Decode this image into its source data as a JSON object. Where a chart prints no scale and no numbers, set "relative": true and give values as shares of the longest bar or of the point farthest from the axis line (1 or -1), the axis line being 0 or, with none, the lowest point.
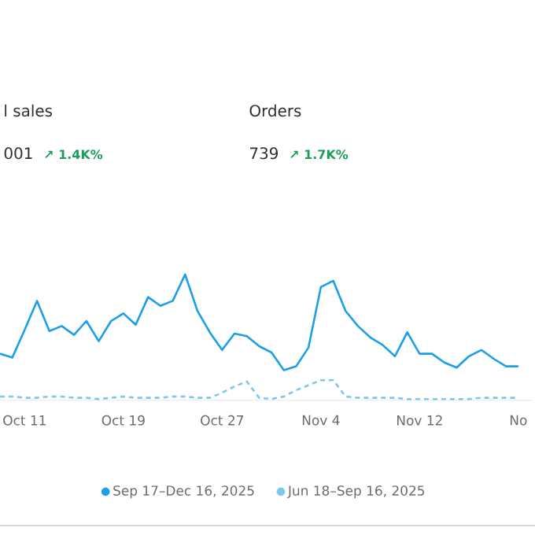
{
  "chart_data": {
    "type": "line",
    "relative": true,
    "legend": "bottom",
    "categories": [
      null,
      null,
      "Oct 11",
      null,
      null,
      null,
      null,
      null,
      null,
      null,
      "Oct 19",
      null,
      null,
      null,
      null,
      null,
      null,
      null,
      "Oct 27",
      null,
      null,
      null,
      null,
      null,
      null,
      null,
      "Nov 4",
      null,
      null,
      null,
      null,
      null,
      null,
      null,
      "Nov 12",
      null,
      null,
      null,
      null,
      null,
      null,
      null,
      "No"
    ],
    "series": [
      {
        "name": "Sep 17–Dec 16, 2025",
        "color": "#1a9fe8",
        "line_style": "solid",
        "values": [
          0.37,
          0.34,
          0.56,
          0.79,
          0.55,
          0.59,
          0.52,
          0.63,
          0.47,
          0.63,
          0.69,
          0.6,
          0.82,
          0.75,
          0.79,
          1.0,
          0.71,
          0.54,
          0.4,
          0.53,
          0.51,
          0.43,
          0.38,
          0.24,
          0.27,
          0.42,
          0.9,
          0.95,
          0.71,
          0.59,
          0.5,
          0.44,
          0.35,
          0.54,
          0.37,
          0.37,
          0.3,
          0.26,
          0.35,
          0.4,
          0.33,
          0.27,
          0.27
        ]
      },
      {
        "name": "Jun 18–Sep 16, 2025",
        "color": "#7cc7ec",
        "line_style": "dashed",
        "values": [
          0.03,
          0.03,
          0.02,
          0.02,
          0.03,
          0.03,
          0.02,
          0.02,
          0.01,
          0.02,
          0.03,
          0.02,
          0.02,
          0.02,
          0.03,
          0.03,
          0.02,
          0.02,
          0.06,
          0.11,
          0.15,
          0.02,
          0.01,
          0.03,
          0.08,
          0.12,
          0.16,
          0.16,
          0.03,
          0.02,
          0.02,
          0.02,
          0.02,
          0.01,
          0.01,
          0.01,
          0.01,
          0.01,
          0.01,
          0.02,
          0.02,
          0.02,
          0.02
        ]
      }
    ],
    "annotations": [
      "l sales",
      "001",
      "↗ 1.4K%",
      "Orders",
      "739",
      "↗ 1.7K%"
    ]
  }
}
